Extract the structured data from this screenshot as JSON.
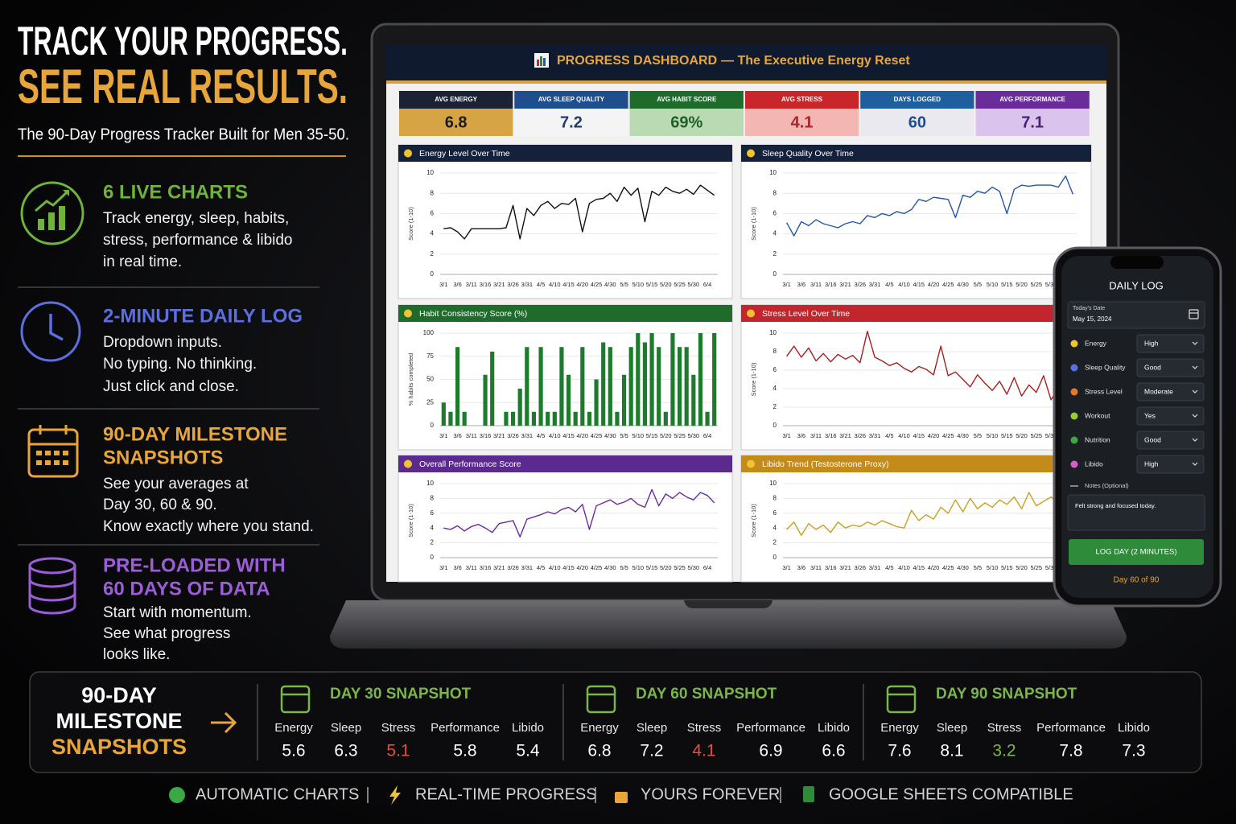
{
  "header": {
    "title_line1": "TRACK YOUR PROGRESS.",
    "title_line2": "SEE REAL RESULTS.",
    "subtitle": "The 90-Day Progress Tracker Built for Men 35-50."
  },
  "features": [
    {
      "color": "#6fb33a",
      "title_lines": [
        "6 LIVE CHARTS"
      ],
      "body_lines": [
        "Track energy, sleep, habits,",
        "stress, performance & libido",
        "in real time."
      ]
    },
    {
      "color": "#5b6fe0",
      "title_lines": [
        "2-MINUTE DAILY LOG"
      ],
      "body_lines": [
        "Dropdown inputs.",
        "No typing. No thinking.",
        "Just click and close."
      ]
    },
    {
      "color": "#e8a53a",
      "title_lines": [
        "90-DAY MILESTONE",
        "SNAPSHOTS"
      ],
      "body_lines": [
        "See your averages at",
        "Day 30, 60 & 90.",
        "Know exactly where you stand."
      ]
    },
    {
      "color": "#9b5ed6",
      "title_lines": [
        "PRE-LOADED WITH",
        "60 DAYS OF DATA"
      ],
      "body_lines": [
        "Start with momentum.",
        "See what progress",
        "looks like."
      ]
    }
  ],
  "dashboard": {
    "title": "PROGRESS DASHBOARD",
    "subtitle": "— The Executive Energy Reset",
    "kpis": [
      {
        "label": "AVG ENERGY",
        "value": "6.8",
        "label_bg": "#1a2233",
        "value_bg": "#d6a444",
        "value_color": "#1a1a1a"
      },
      {
        "label": "AVG SLEEP QUALITY",
        "value": "7.2",
        "label_bg": "#1f4e8c",
        "value_bg": "#f4f4f4",
        "value_color": "#1f3d6e"
      },
      {
        "label": "AVG HABIT SCORE",
        "value": "69%",
        "label_bg": "#1e6b2c",
        "value_bg": "#b9dab2",
        "value_color": "#1e5e2a"
      },
      {
        "label": "AVG STRESS",
        "value": "4.1",
        "label_bg": "#c8262b",
        "value_bg": "#f4b6b2",
        "value_color": "#b0202a"
      },
      {
        "label": "DAYS LOGGED",
        "value": "60",
        "label_bg": "#1f5f9e",
        "value_bg": "#e9e9ef",
        "value_color": "#1f4e8c"
      },
      {
        "label": "AVG PERFORMANCE",
        "value": "7.1",
        "label_bg": "#6a2c9a",
        "value_bg": "#dac4ee",
        "value_color": "#4a2070"
      }
    ],
    "dates": [
      "3/1",
      null,
      "3/6",
      null,
      "3/11",
      null,
      "3/16",
      null,
      "3/21",
      null,
      "3/26",
      null,
      "3/31",
      null,
      "4/5",
      null,
      "4/10",
      null,
      "4/15",
      null,
      "4/20",
      null,
      "4/25",
      null,
      "4/30",
      null,
      "5/5",
      null,
      "5/10",
      null,
      "5/15",
      null,
      "5/20",
      null,
      "5/25",
      null,
      "5/30",
      null,
      "6/4",
      null
    ],
    "charts": [
      {
        "type": "line",
        "title": "Energy Level Over Time",
        "y_label": "Score (1-10)",
        "header_color": "#15213a",
        "color": "#111111",
        "ylim": [
          0,
          10
        ],
        "yticks": [
          0,
          2,
          4,
          6,
          8,
          10
        ],
        "values": [
          4.5,
          4.6,
          4.2,
          3.5,
          4.5,
          4.5,
          4.5,
          4.5,
          4.5,
          4.6,
          6.8,
          3.5,
          6.5,
          5.8,
          6.8,
          7.2,
          6.5,
          7.0,
          6.9,
          7.5,
          4.2,
          7.0,
          7.4,
          7.5,
          8.0,
          7.2,
          8.6,
          7.8,
          8.5,
          5.2,
          8.2,
          7.8,
          8.6,
          8.2,
          8.0,
          8.4,
          7.9,
          8.8,
          8.3,
          7.8
        ]
      },
      {
        "type": "line",
        "title": "Sleep Quality Over Time",
        "y_label": "Score (1-10)",
        "header_color": "#15213a",
        "color": "#2457a8",
        "ylim": [
          0,
          10
        ],
        "yticks": [
          0,
          2,
          4,
          6,
          8,
          10
        ],
        "values": [
          5.1,
          3.8,
          5.2,
          4.8,
          5.4,
          5.0,
          4.8,
          4.6,
          5.0,
          5.2,
          5.0,
          5.8,
          5.6,
          6.0,
          5.8,
          6.2,
          6.0,
          6.4,
          7.4,
          7.2,
          7.6,
          7.5,
          7.4,
          5.6,
          7.8,
          7.6,
          8.2,
          8.0,
          8.6,
          8.2,
          6.0,
          8.4,
          8.8,
          8.7,
          8.8,
          8.8,
          8.8,
          8.6,
          9.7,
          7.9
        ]
      },
      {
        "type": "bar",
        "title": "Habit Consistency Score (%)",
        "y_label": "% habits completed",
        "header_color": "#1e6b2c",
        "color": "#1e7a2c",
        "ylim": [
          0,
          100
        ],
        "yticks": [
          0,
          25,
          50,
          75,
          100
        ],
        "values": [
          25,
          15,
          85,
          15,
          0,
          0,
          55,
          80,
          0,
          15,
          15,
          40,
          85,
          15,
          85,
          15,
          15,
          85,
          55,
          15,
          85,
          15,
          50,
          90,
          85,
          15,
          55,
          85,
          100,
          90,
          100,
          85,
          15,
          100,
          85,
          85,
          55,
          100,
          15,
          100
        ]
      },
      {
        "type": "line",
        "title": "Stress Level Over Time",
        "y_label": "Score (1-10)",
        "header_color": "#c0262b",
        "color": "#a5201f",
        "ylim": [
          0,
          10
        ],
        "yticks": [
          0,
          2,
          4,
          6,
          8,
          10
        ],
        "values": [
          7.5,
          8.6,
          7.4,
          8.4,
          7.0,
          7.8,
          6.9,
          7.7,
          7.2,
          7.6,
          6.8,
          10.2,
          7.4,
          7.0,
          6.5,
          6.8,
          6.2,
          5.8,
          6.4,
          6.1,
          5.5,
          8.6,
          5.4,
          5.8,
          5.0,
          4.2,
          5.5,
          4.6,
          3.8,
          4.8,
          3.4,
          5.2,
          3.2,
          4.4,
          3.6,
          5.4,
          2.8,
          4.0,
          2.6,
          3.8
        ]
      },
      {
        "type": "line",
        "title": "Overall Performance Score",
        "y_label": "Score (1-10)",
        "header_color": "#5a2a8e",
        "color": "#6a2c9a",
        "ylim": [
          0,
          10
        ],
        "yticks": [
          0,
          2,
          4,
          6,
          8,
          10
        ],
        "values": [
          4.0,
          3.8,
          4.3,
          3.6,
          4.2,
          4.5,
          4.0,
          3.4,
          4.6,
          4.8,
          5.0,
          2.8,
          5.2,
          5.5,
          5.8,
          6.2,
          5.9,
          6.5,
          6.8,
          6.2,
          7.2,
          3.8,
          7.0,
          7.4,
          7.8,
          7.2,
          7.5,
          8.0,
          7.2,
          6.8,
          9.2,
          7.0,
          8.6,
          8.0,
          8.8,
          8.2,
          7.8,
          8.8,
          8.4,
          7.4
        ]
      },
      {
        "type": "line",
        "title": "Libido Trend (Testosterone Proxy)",
        "y_label": "Score (1-10)",
        "header_color": "#c48a1a",
        "color": "#c9a020",
        "ylim": [
          0,
          10
        ],
        "yticks": [
          0,
          2,
          4,
          6,
          8,
          10
        ],
        "values": [
          3.8,
          4.8,
          3.0,
          4.6,
          3.8,
          4.4,
          3.4,
          4.8,
          4.0,
          4.4,
          4.2,
          4.8,
          4.4,
          5.0,
          4.6,
          4.2,
          4.0,
          6.4,
          5.0,
          5.8,
          5.2,
          6.8,
          6.0,
          7.8,
          6.2,
          8.0,
          6.6,
          7.4,
          6.8,
          7.8,
          7.2,
          8.2,
          6.6,
          8.8,
          7.0,
          7.6,
          8.2,
          7.4,
          8.0,
          7.0
        ]
      }
    ]
  },
  "phone": {
    "title": "DAILY LOG",
    "date_label": "Today's Date",
    "date": "May 15, 2024",
    "fields": [
      {
        "label": "Energy",
        "value": "High",
        "icon_color": "#f1c232"
      },
      {
        "label": "Sleep Quality",
        "value": "Good",
        "icon_color": "#5b6fe0"
      },
      {
        "label": "Stress Level",
        "value": "Moderate",
        "icon_color": "#e8772e"
      },
      {
        "label": "Workout",
        "value": "Yes",
        "icon_color": "#9acd32"
      },
      {
        "label": "Nutrition",
        "value": "Good",
        "icon_color": "#3aa845"
      },
      {
        "label": "Libido",
        "value": "High",
        "icon_color": "#d65ec9"
      }
    ],
    "notes_label": "Notes (Optional)",
    "notes": "Felt strong and focused today.",
    "button": "LOG DAY (2 MINUTES)",
    "footer": "Day 60 of 90"
  },
  "snapshots": {
    "title_lines": [
      "90-DAY",
      "MILESTONE",
      "SNAPSHOTS"
    ],
    "items": [
      {
        "title": "DAY 30 SNAPSHOT",
        "metrics": [
          {
            "label": "Energy",
            "value": "5.6"
          },
          {
            "label": "Sleep",
            "value": "6.3"
          },
          {
            "label": "Stress",
            "value": "5.1",
            "color": "#e0503a"
          },
          {
            "label": "Performance",
            "value": "5.8"
          },
          {
            "label": "Libido",
            "value": "5.4"
          }
        ]
      },
      {
        "title": "DAY 60 SNAPSHOT",
        "metrics": [
          {
            "label": "Energy",
            "value": "6.8"
          },
          {
            "label": "Sleep",
            "value": "7.2"
          },
          {
            "label": "Stress",
            "value": "4.1",
            "color": "#e0503a"
          },
          {
            "label": "Performance",
            "value": "6.9"
          },
          {
            "label": "Libido",
            "value": "6.6"
          }
        ]
      },
      {
        "title": "DAY 90 SNAPSHOT",
        "metrics": [
          {
            "label": "Energy",
            "value": "7.6"
          },
          {
            "label": "Sleep",
            "value": "8.1"
          },
          {
            "label": "Stress",
            "value": "3.2",
            "color": "#7ab648"
          },
          {
            "label": "Performance",
            "value": "7.8"
          },
          {
            "label": "Libido",
            "value": "7.3"
          }
        ]
      }
    ]
  },
  "footer": [
    "AUTOMATIC CHARTS",
    "REAL-TIME PROGRESS",
    "YOURS FOREVER",
    "GOOGLE SHEETS COMPATIBLE"
  ]
}
